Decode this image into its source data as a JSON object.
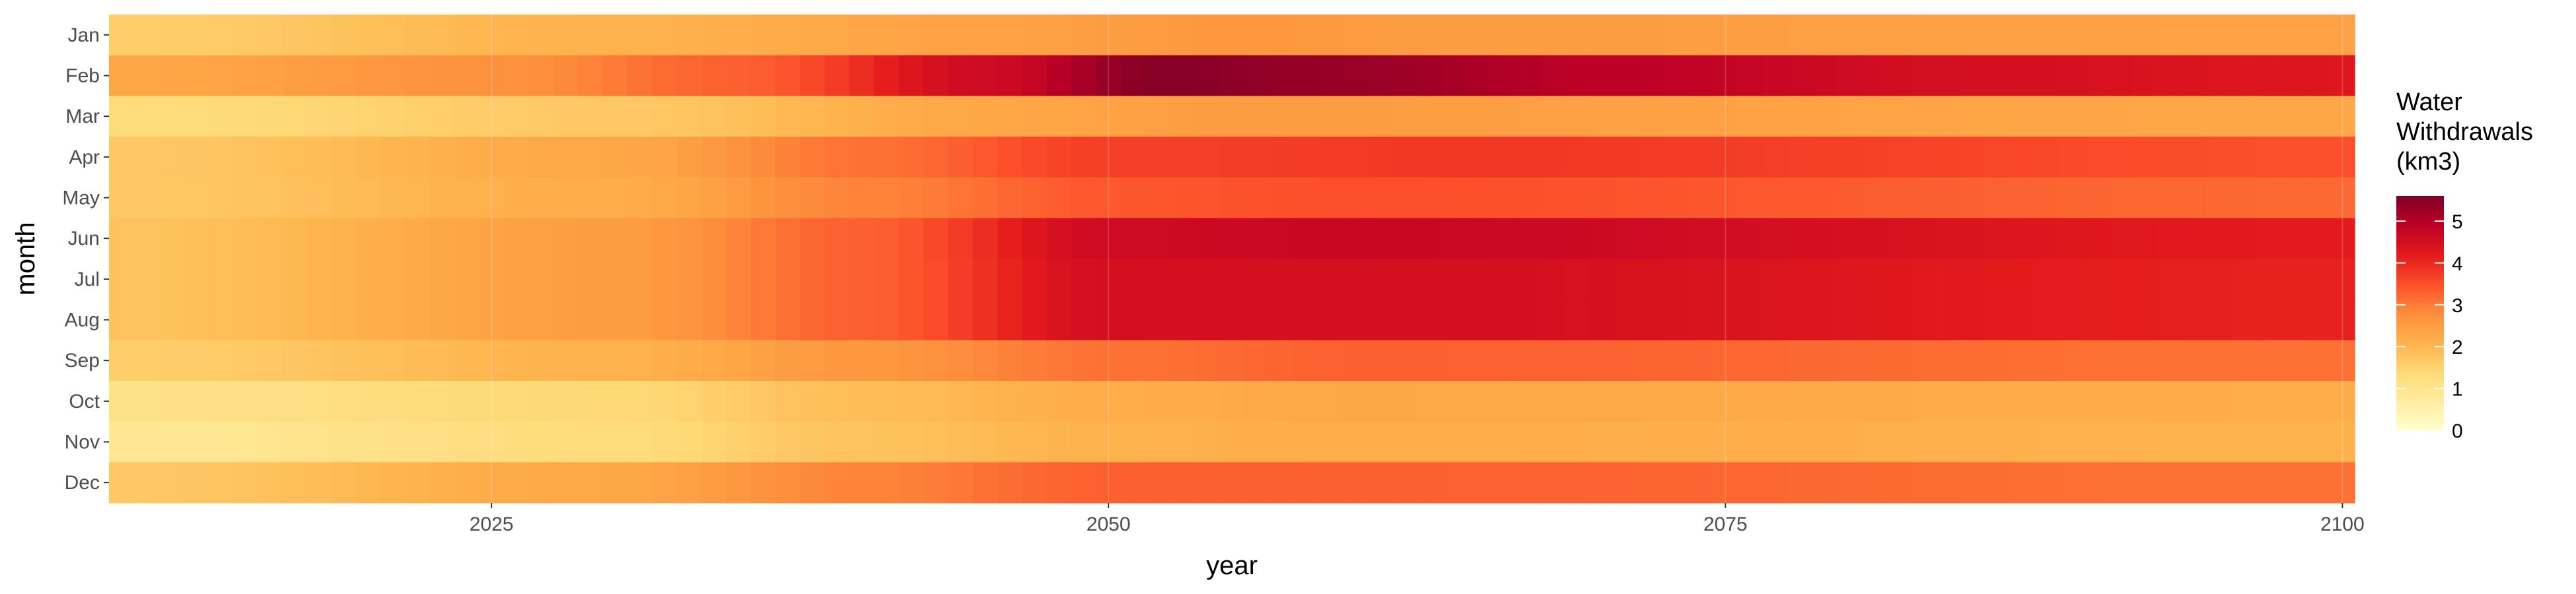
{
  "chart_data": {
    "type": "heatmap",
    "xlabel": "year",
    "ylabel": "month",
    "x_range": [
      2010,
      2100
    ],
    "x_ticks": [
      2025,
      2050,
      2075,
      2100
    ],
    "y_categories": [
      "Jan",
      "Feb",
      "Mar",
      "Apr",
      "May",
      "Jun",
      "Jul",
      "Aug",
      "Sep",
      "Oct",
      "Nov",
      "Dec"
    ],
    "legend": {
      "title": [
        "Water",
        "Withdrawals",
        "(km3)"
      ],
      "ticks": [
        0,
        1,
        2,
        3,
        4,
        5
      ],
      "range": [
        0,
        5.6
      ],
      "placement": "right",
      "colors": [
        "#ffffcc",
        "#ffeda0",
        "#fed976",
        "#feb24c",
        "#fd8d3c",
        "#fc4e2a",
        "#e31a1c",
        "#bd0026",
        "#800026"
      ]
    },
    "year_step": 1,
    "month_profiles": [
      {
        "month": "Jan",
        "keys": [
          [
            2010,
            1.6
          ],
          [
            2030,
            2.1
          ],
          [
            2045,
            2.4
          ],
          [
            2055,
            2.6
          ],
          [
            2065,
            2.5
          ],
          [
            2100,
            2.4
          ]
        ]
      },
      {
        "month": "Feb",
        "keys": [
          [
            2010,
            2.3
          ],
          [
            2025,
            2.7
          ],
          [
            2035,
            3.3
          ],
          [
            2045,
            4.6
          ],
          [
            2052,
            5.5
          ],
          [
            2060,
            5.3
          ],
          [
            2070,
            4.9
          ],
          [
            2085,
            4.5
          ],
          [
            2100,
            4.3
          ]
        ]
      },
      {
        "month": "Mar",
        "keys": [
          [
            2010,
            1.3
          ],
          [
            2030,
            1.7
          ],
          [
            2045,
            2.3
          ],
          [
            2055,
            2.5
          ],
          [
            2100,
            2.3
          ]
        ]
      },
      {
        "month": "Apr",
        "keys": [
          [
            2010,
            1.7
          ],
          [
            2030,
            2.3
          ],
          [
            2040,
            3.1
          ],
          [
            2050,
            3.7
          ],
          [
            2065,
            3.8
          ],
          [
            2100,
            3.5
          ]
        ]
      },
      {
        "month": "May",
        "keys": [
          [
            2010,
            1.7
          ],
          [
            2030,
            2.2
          ],
          [
            2040,
            2.9
          ],
          [
            2050,
            3.4
          ],
          [
            2060,
            3.5
          ],
          [
            2100,
            3.2
          ]
        ]
      },
      {
        "month": "Jun",
        "keys": [
          [
            2010,
            1.8
          ],
          [
            2030,
            2.5
          ],
          [
            2040,
            3.3
          ],
          [
            2050,
            4.6
          ],
          [
            2060,
            4.7
          ],
          [
            2100,
            4.2
          ]
        ]
      },
      {
        "month": "Jul",
        "keys": [
          [
            2010,
            1.8
          ],
          [
            2030,
            2.5
          ],
          [
            2040,
            3.3
          ],
          [
            2050,
            4.5
          ],
          [
            2060,
            4.5
          ],
          [
            2100,
            4.1
          ]
        ]
      },
      {
        "month": "Aug",
        "keys": [
          [
            2010,
            1.8
          ],
          [
            2030,
            2.5
          ],
          [
            2040,
            3.3
          ],
          [
            2050,
            4.5
          ],
          [
            2060,
            4.5
          ],
          [
            2100,
            4.1
          ]
        ]
      },
      {
        "month": "Sep",
        "keys": [
          [
            2010,
            1.6
          ],
          [
            2030,
            2.1
          ],
          [
            2040,
            2.6
          ],
          [
            2050,
            3.1
          ],
          [
            2060,
            3.3
          ],
          [
            2100,
            3.1
          ]
        ]
      },
      {
        "month": "Oct",
        "keys": [
          [
            2010,
            1.1
          ],
          [
            2030,
            1.4
          ],
          [
            2040,
            1.9
          ],
          [
            2050,
            2.2
          ],
          [
            2060,
            2.3
          ],
          [
            2100,
            2.2
          ]
        ]
      },
      {
        "month": "Nov",
        "keys": [
          [
            2010,
            0.9
          ],
          [
            2030,
            1.3
          ],
          [
            2040,
            1.8
          ],
          [
            2050,
            2.1
          ],
          [
            2060,
            2.2
          ],
          [
            2100,
            2.1
          ]
        ]
      },
      {
        "month": "Dec",
        "keys": [
          [
            2010,
            1.7
          ],
          [
            2030,
            2.3
          ],
          [
            2040,
            2.9
          ],
          [
            2050,
            3.3
          ],
          [
            2060,
            3.3
          ],
          [
            2100,
            3.1
          ]
        ]
      }
    ],
    "grid": true,
    "panel_background": "#ebebeb"
  }
}
